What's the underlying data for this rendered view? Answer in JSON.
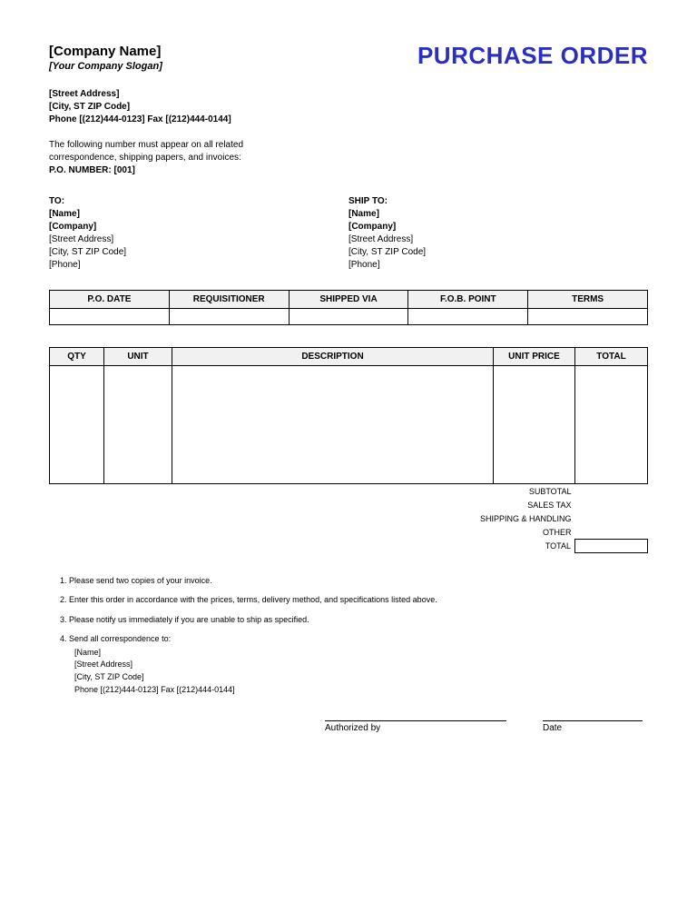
{
  "document": {
    "title": "PURCHASE ORDER",
    "title_color": "#2b2fbf",
    "title_fontsize": 26
  },
  "company": {
    "name": "[Company Name]",
    "slogan": "[Your Company Slogan]",
    "street": "[Street Address]",
    "city_line": "[City, ST ZIP Code]",
    "phone_fax": "Phone [(212)444-0123]  Fax [(212)444-0144]"
  },
  "po_note": {
    "line1": "The following number must appear on all related",
    "line2": "correspondence, shipping papers, and invoices:",
    "number_label": "P.O. NUMBER: [001]"
  },
  "to": {
    "label": "TO:",
    "name": "[Name]",
    "company": "[Company]",
    "street": "[Street Address]",
    "city_line": "[City, ST ZIP Code]",
    "phone": "[Phone]"
  },
  "ship_to": {
    "label": "SHIP TO:",
    "name": "[Name]",
    "company": "[Company]",
    "street": "[Street Address]",
    "city_line": "[City, ST ZIP Code]",
    "phone": "[Phone]"
  },
  "meta_headers": {
    "po_date": "P.O. DATE",
    "requisitioner": "REQUISITIONER",
    "shipped_via": "SHIPPED VIA",
    "fob_point": "F.O.B. POINT",
    "terms": "TERMS"
  },
  "meta_values": {
    "po_date": "",
    "requisitioner": "",
    "shipped_via": "",
    "fob_point": "",
    "terms": ""
  },
  "item_headers": {
    "qty": "QTY",
    "unit": "UNIT",
    "description": "DESCRIPTION",
    "unit_price": "UNIT PRICE",
    "total": "TOTAL"
  },
  "totals": {
    "subtotal_label": "SUBTOTAL",
    "sales_tax_label": "SALES TAX",
    "shipping_label": "SHIPPING & HANDLING",
    "other_label": "OTHER",
    "total_label": "TOTAL",
    "subtotal_val": "",
    "sales_tax_val": "",
    "shipping_val": "",
    "other_val": "",
    "total_val": ""
  },
  "notes": {
    "n1": "Please send two copies of your invoice.",
    "n2": "Enter this order in accordance with the prices, terms, delivery method, and specifications listed above.",
    "n3": "Please notify us immediately if you are unable to ship as specified.",
    "n4": "Send all correspondence to:",
    "n4_name": "[Name]",
    "n4_street": "[Street Address]",
    "n4_city": "[City, ST ZIP Code]",
    "n4_phone": "Phone [(212)444-0123]  Fax [(212)444-0144]"
  },
  "signature": {
    "auth_label": "Authorized by",
    "date_label": "Date"
  },
  "styling": {
    "background_color": "#ffffff",
    "text_color": "#000000",
    "header_bg": "#f1f1f1",
    "border_color": "#000000",
    "body_font": "Verdana",
    "base_fontsize": 10
  }
}
